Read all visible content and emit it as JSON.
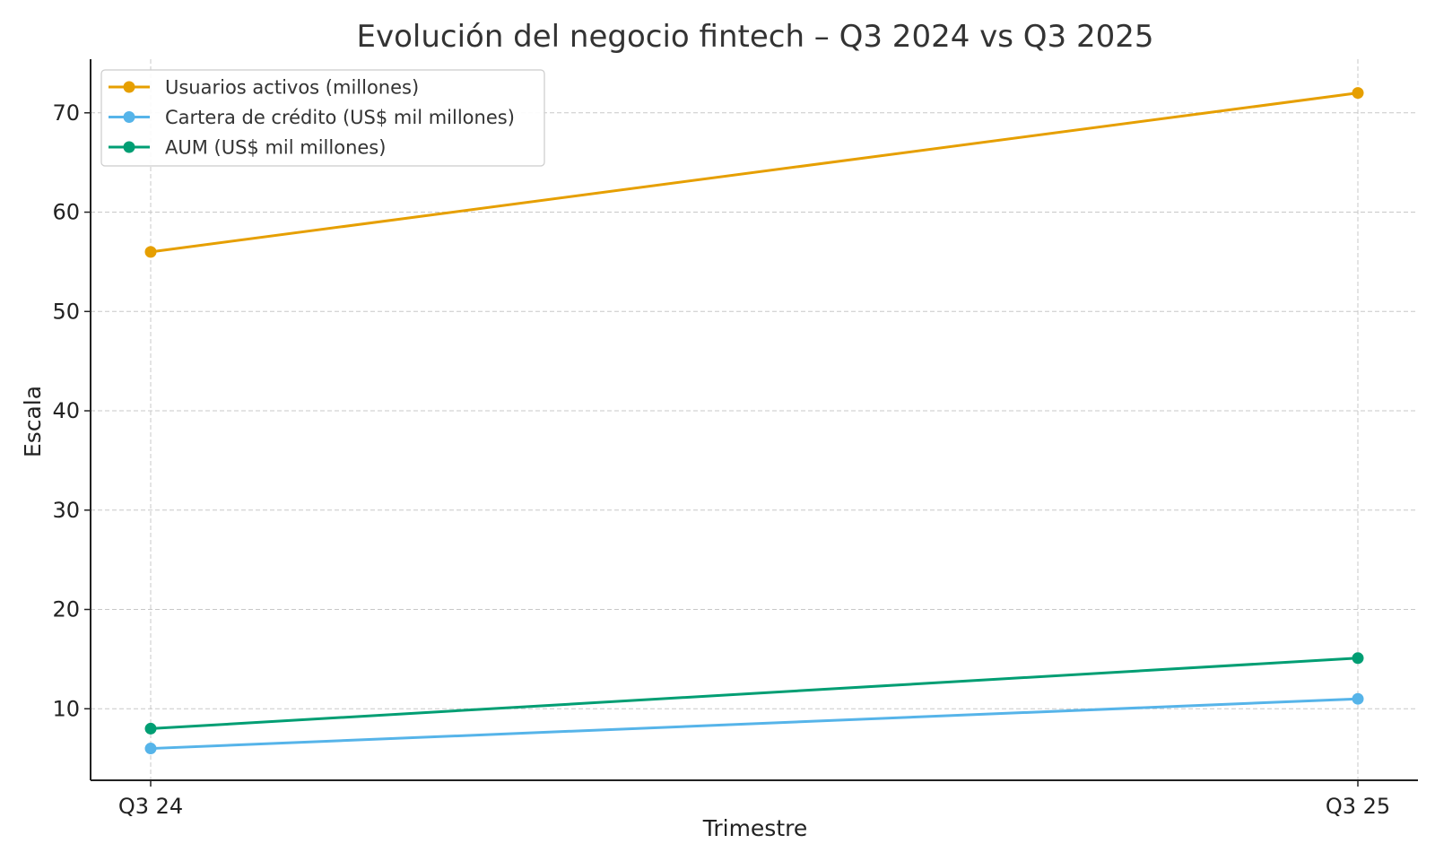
{
  "chart_data": {
    "type": "line",
    "title": "Evolución del negocio fintech – Q3 2024 vs Q3 2025",
    "xlabel": "Trimestre",
    "ylabel": "Escala",
    "categories": [
      "Q3 24",
      "Q3 25"
    ],
    "ylim": [
      2.8,
      75.4
    ],
    "yticks": [
      10,
      20,
      30,
      40,
      50,
      60,
      70
    ],
    "grid": true,
    "legend_position": "top-left",
    "series": [
      {
        "name": "Usuarios activos (millones)",
        "values": [
          56,
          72
        ],
        "color": "#E69F00"
      },
      {
        "name": "Cartera de crédito (US$ mil millones)",
        "values": [
          6,
          11
        ],
        "color": "#56B4E9"
      },
      {
        "name": "AUM (US$ mil millones)",
        "values": [
          8,
          15.1
        ],
        "color": "#009E73"
      }
    ]
  }
}
